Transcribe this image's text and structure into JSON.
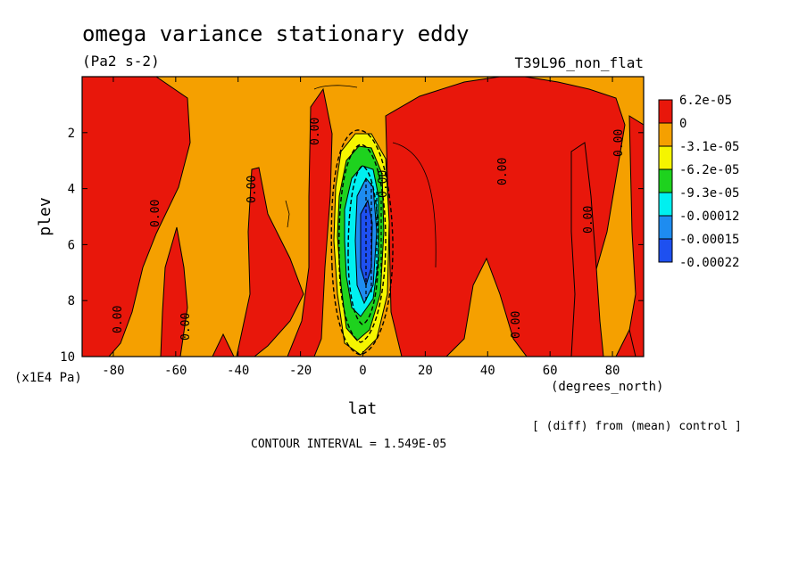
{
  "chart_data": {
    "type": "heatmap",
    "title": "omega variance stationary eddy",
    "units": "(Pa2 s-2)",
    "run_label": "T39L96_non_flat",
    "xlabel": "lat",
    "x_units": "(degrees_north)",
    "ylabel": "plev",
    "y_units": "(x1E4 Pa)",
    "xlim": [
      -90,
      90
    ],
    "ylim": [
      10,
      0
    ],
    "x_ticks": [
      -80,
      -60,
      -40,
      -20,
      0,
      20,
      40,
      60,
      80
    ],
    "y_ticks": [
      2,
      4,
      6,
      8,
      10
    ],
    "contour_line_label": "0.00",
    "colorbar": {
      "labels": [
        "6.2e-05",
        "0",
        "-3.1e-05",
        "-6.2e-05",
        "-9.3e-05",
        "-0.00012",
        "-0.00015",
        "-0.00022"
      ],
      "colors": [
        "#e8170b",
        "#f5a000",
        "#f5f500",
        "#1ed21e",
        "#00f0f0",
        "#1e8cf0",
        "#1e50f0"
      ]
    },
    "note": "[ (diff) from (mean) control ]",
    "contour_interval": "CONTOUR INTERVAL = 1.549E-05"
  }
}
